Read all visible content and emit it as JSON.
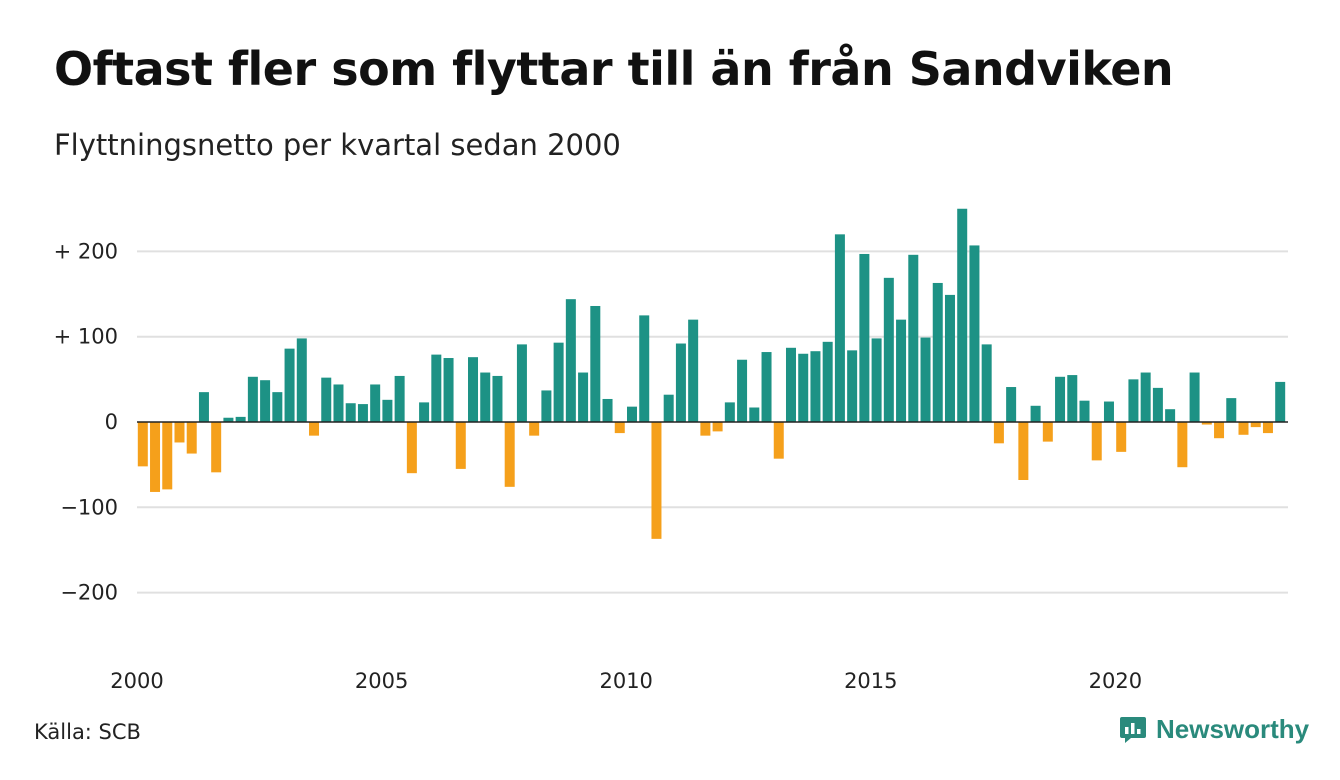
{
  "title": "Oftast fler som flyttar till än från Sandviken",
  "subtitle": "Flyttningsnetto per kvartal sedan 2000",
  "source": "Källa: SCB",
  "brand": {
    "name": "Newsworthy",
    "icon": "newsworthy-logo-icon"
  },
  "colors": {
    "positive": "#1d9285",
    "negative": "#f5a01b",
    "grid": "#e0e0e0",
    "zero_line": "#222222"
  },
  "chart_data": {
    "type": "bar",
    "title": "Oftast fler som flyttar till än från Sandviken",
    "subtitle": "Flyttningsnetto per kvartal sedan 2000",
    "x_start_year": 2000,
    "periods_per_year": 4,
    "x_ticks": [
      "2000",
      "2005",
      "2010",
      "2015",
      "2020"
    ],
    "y_ticks": [
      {
        "value": 200,
        "label": "+ 200"
      },
      {
        "value": 100,
        "label": "+ 100"
      },
      {
        "value": 0,
        "label": "0"
      },
      {
        "value": -100,
        "label": "−100"
      },
      {
        "value": -200,
        "label": "−200"
      }
    ],
    "ylim": [
      -250,
      250
    ],
    "grid": true,
    "values": [
      -52,
      -82,
      -79,
      -24,
      -37,
      35,
      -59,
      5,
      6,
      53,
      49,
      35,
      86,
      98,
      -16,
      52,
      44,
      22,
      21,
      44,
      26,
      54,
      -60,
      23,
      79,
      75,
      -55,
      76,
      58,
      54,
      -76,
      91,
      -16,
      37,
      93,
      144,
      58,
      136,
      27,
      -13,
      18,
      125,
      -137,
      32,
      92,
      120,
      -16,
      -11,
      23,
      73,
      17,
      82,
      -43,
      87,
      80,
      83,
      94,
      220,
      84,
      197,
      98,
      169,
      120,
      196,
      99,
      163,
      149,
      250,
      207,
      91,
      -25,
      41,
      -68,
      19,
      -23,
      53,
      55,
      25,
      -45,
      24,
      -35,
      50,
      58,
      40,
      15,
      -53,
      58,
      -3,
      -19,
      28,
      -15,
      -6,
      -13,
      47
    ]
  }
}
